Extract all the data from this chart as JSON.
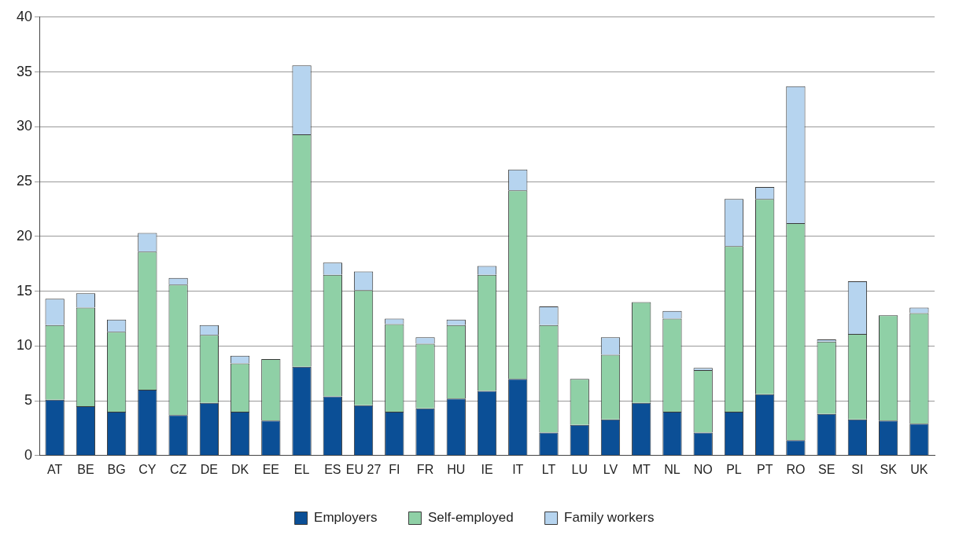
{
  "chart_data": {
    "type": "bar",
    "stacked": true,
    "categories": [
      "AT",
      "BE",
      "BG",
      "CY",
      "CZ",
      "DE",
      "DK",
      "EE",
      "EL",
      "ES",
      "EU 27",
      "FI",
      "FR",
      "HU",
      "IE",
      "IT",
      "LT",
      "LU",
      "LV",
      "MT",
      "NL",
      "NO",
      "PL",
      "PT",
      "RO",
      "SE",
      "SI",
      "SK",
      "UK"
    ],
    "series": [
      {
        "name": "Employers",
        "color": "#0b4f96",
        "values": [
          5.1,
          4.5,
          4.0,
          6.0,
          3.7,
          4.8,
          4.0,
          3.2,
          8.1,
          5.4,
          4.6,
          4.0,
          4.3,
          5.2,
          5.9,
          7.0,
          2.1,
          2.8,
          3.3,
          4.8,
          4.0,
          2.1,
          4.0,
          5.6,
          1.4,
          3.8,
          3.3,
          3.2,
          2.9
        ]
      },
      {
        "name": "Self-employed",
        "color": "#8fd0a6",
        "values": [
          6.8,
          9.0,
          7.3,
          12.6,
          11.9,
          6.2,
          4.4,
          5.6,
          21.2,
          11.1,
          10.5,
          8.0,
          5.9,
          6.7,
          10.6,
          17.2,
          9.8,
          4.2,
          5.9,
          9.2,
          8.5,
          5.7,
          15.1,
          17.8,
          19.8,
          6.6,
          7.8,
          9.6,
          10.1
        ]
      },
      {
        "name": "Family workers",
        "color": "#b6d4ef",
        "values": [
          2.4,
          1.3,
          1.1,
          1.7,
          0.6,
          0.9,
          0.7,
          0,
          6.3,
          1.1,
          1.7,
          0.5,
          0.6,
          0.5,
          0.8,
          1.9,
          1.7,
          0,
          1.6,
          0,
          0.7,
          0.2,
          4.3,
          1.1,
          12.5,
          0.2,
          4.8,
          0,
          0.5
        ]
      }
    ],
    "ylim": [
      0,
      40
    ],
    "yticks": [
      0,
      5,
      10,
      15,
      20,
      25,
      30,
      35,
      40
    ],
    "grid": "y",
    "legend": "bottom"
  }
}
